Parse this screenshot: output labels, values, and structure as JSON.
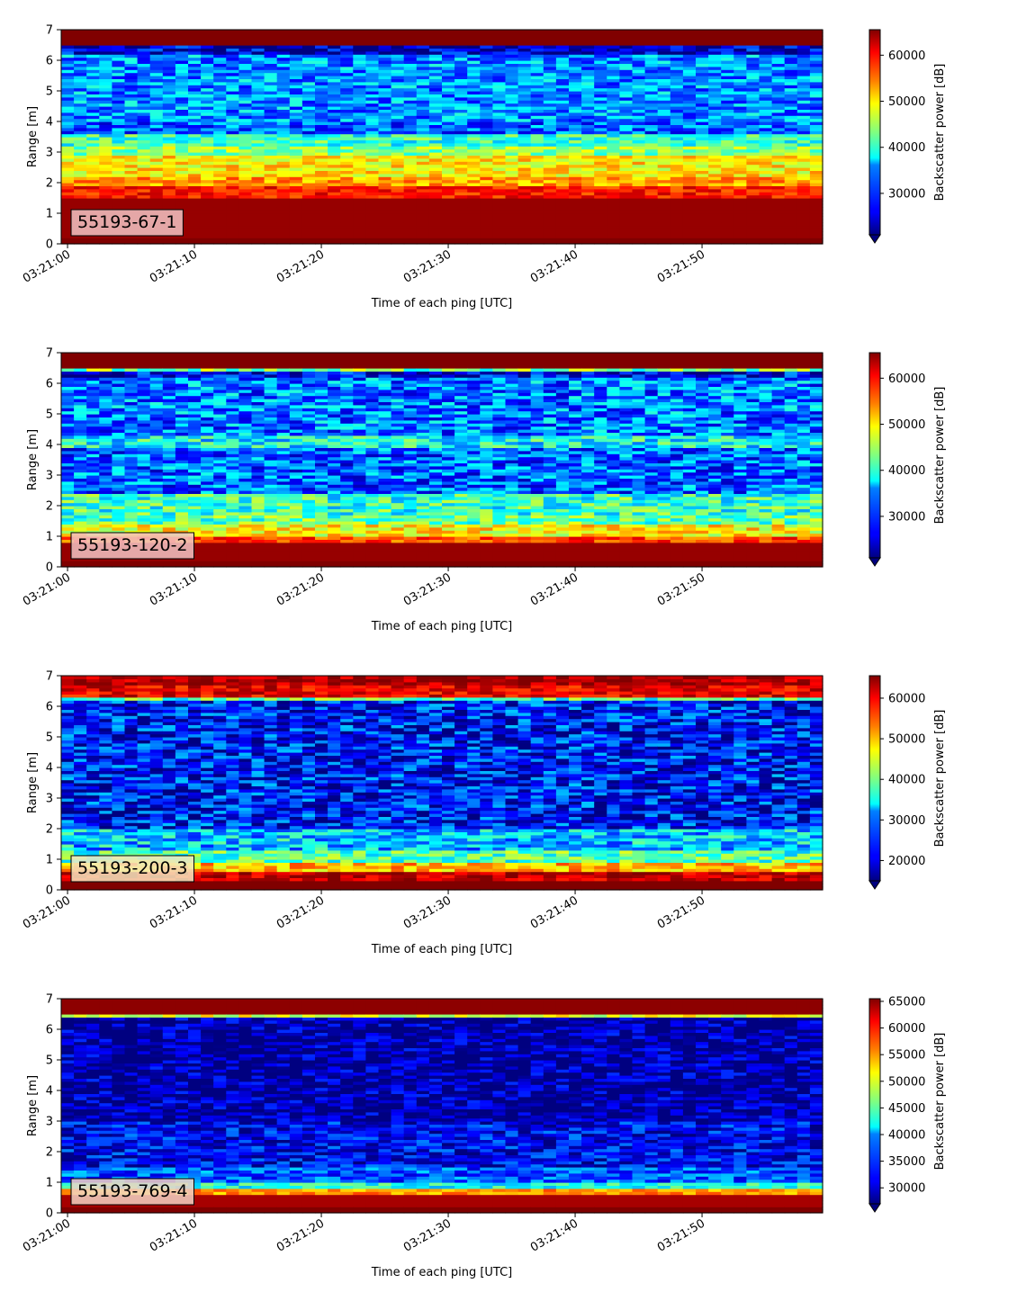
{
  "chart_data": [
    {
      "type": "heatmap",
      "tag": "55193-67-1",
      "xlabel": "Time of each ping [UTC]",
      "ylabel": "Range [m]",
      "xticks": [
        "03:21:00",
        "03:21:10",
        "03:21:20",
        "03:21:30",
        "03:21:40",
        "03:21:50"
      ],
      "x_seconds": [
        0,
        10,
        20,
        30,
        40,
        50
      ],
      "xlim_seconds": [
        -0.5,
        59.5
      ],
      "ylim": [
        0,
        7
      ],
      "yticks": [
        0,
        1,
        2,
        3,
        4,
        5,
        6,
        7
      ],
      "colorbar": {
        "label": "Backscatter power [dB]",
        "range": [
          21000,
          65535
        ],
        "ticks": [
          30000,
          40000,
          50000,
          60000
        ],
        "tick_labels": [
          "30000",
          "40000",
          "50000",
          "60000"
        ],
        "extend": "min",
        "colormap": "jet"
      },
      "range_profile": [
        {
          "range": [
            0.0,
            0.2
          ],
          "value": 65535
        },
        {
          "range": [
            0.2,
            1.5
          ],
          "value": 64500
        },
        {
          "range": [
            1.5,
            1.9
          ],
          "value": 59000
        },
        {
          "range": [
            1.9,
            2.2
          ],
          "value": 53000
        },
        {
          "range": [
            2.2,
            2.9
          ],
          "value": 49500
        },
        {
          "range": [
            2.9,
            3.2
          ],
          "value": 44000
        },
        {
          "range": [
            3.2,
            3.6
          ],
          "value": 40000
        },
        {
          "range": [
            3.6,
            4.0
          ],
          "value": 31000
        },
        {
          "range": [
            4.0,
            6.2
          ],
          "value": 33000
        },
        {
          "range": [
            6.2,
            6.5
          ],
          "value": 24000
        },
        {
          "range": [
            6.5,
            6.55
          ],
          "value": 45000
        },
        {
          "range": [
            6.55,
            7.0
          ],
          "value": 65535
        }
      ],
      "noise_amplitude": 0.35
    },
    {
      "type": "heatmap",
      "tag": "55193-120-2",
      "xlabel": "Time of each ping [UTC]",
      "ylabel": "Range [m]",
      "xticks": [
        "03:21:00",
        "03:21:10",
        "03:21:20",
        "03:21:30",
        "03:21:40",
        "03:21:50"
      ],
      "x_seconds": [
        0,
        10,
        20,
        30,
        40,
        50
      ],
      "xlim_seconds": [
        -0.5,
        59.5
      ],
      "ylim": [
        0,
        7
      ],
      "yticks": [
        0,
        1,
        2,
        3,
        4,
        5,
        6,
        7
      ],
      "colorbar": {
        "label": "Backscatter power [dB]",
        "range": [
          21000,
          65535
        ],
        "ticks": [
          30000,
          40000,
          50000,
          60000
        ],
        "tick_labels": [
          "30000",
          "40000",
          "50000",
          "60000"
        ],
        "extend": "min",
        "colormap": "jet"
      },
      "range_profile": [
        {
          "range": [
            0.0,
            0.2
          ],
          "value": 65535
        },
        {
          "range": [
            0.2,
            0.8
          ],
          "value": 64500
        },
        {
          "range": [
            0.8,
            1.0
          ],
          "value": 57000
        },
        {
          "range": [
            1.0,
            1.4
          ],
          "value": 49000
        },
        {
          "range": [
            1.4,
            1.7
          ],
          "value": 42000
        },
        {
          "range": [
            1.7,
            2.4
          ],
          "value": 40000
        },
        {
          "range": [
            2.4,
            3.9
          ],
          "value": 31000
        },
        {
          "range": [
            3.9,
            4.3
          ],
          "value": 38000
        },
        {
          "range": [
            4.3,
            6.2
          ],
          "value": 32000
        },
        {
          "range": [
            6.2,
            6.4
          ],
          "value": 25000
        },
        {
          "range": [
            6.4,
            6.5
          ],
          "value": 43000
        },
        {
          "range": [
            6.5,
            7.0
          ],
          "value": 65535
        }
      ],
      "noise_amplitude": 0.4
    },
    {
      "type": "heatmap",
      "tag": "55193-200-3",
      "xlabel": "Time of each ping [UTC]",
      "ylabel": "Range [m]",
      "xticks": [
        "03:21:00",
        "03:21:10",
        "03:21:20",
        "03:21:30",
        "03:21:40",
        "03:21:50"
      ],
      "x_seconds": [
        0,
        10,
        20,
        30,
        40,
        50
      ],
      "xlim_seconds": [
        -0.5,
        59.5
      ],
      "ylim": [
        0,
        7
      ],
      "yticks": [
        0,
        1,
        2,
        3,
        4,
        5,
        6,
        7
      ],
      "colorbar": {
        "label": "Backscatter power [dB]",
        "range": [
          15000,
          65535
        ],
        "ticks": [
          20000,
          30000,
          40000,
          50000,
          60000
        ],
        "tick_labels": [
          "20000",
          "30000",
          "40000",
          "50000",
          "60000"
        ],
        "extend": "min",
        "colormap": "jet"
      },
      "range_profile": [
        {
          "range": [
            0.0,
            0.3
          ],
          "value": 65535
        },
        {
          "range": [
            0.3,
            0.6
          ],
          "value": 62000
        },
        {
          "range": [
            0.6,
            0.9
          ],
          "value": 50000
        },
        {
          "range": [
            0.9,
            1.3
          ],
          "value": 38000
        },
        {
          "range": [
            1.3,
            2.0
          ],
          "value": 31000
        },
        {
          "range": [
            2.0,
            6.2
          ],
          "value": 22000
        },
        {
          "range": [
            6.2,
            6.35
          ],
          "value": 38000
        },
        {
          "range": [
            6.35,
            6.7
          ],
          "value": 60000
        },
        {
          "range": [
            6.7,
            7.0
          ],
          "value": 63000
        }
      ],
      "noise_amplitude": 0.4
    },
    {
      "type": "heatmap",
      "tag": "55193-769-4",
      "xlabel": "Time of each ping [UTC]",
      "ylabel": "Range [m]",
      "xticks": [
        "03:21:00",
        "03:21:10",
        "03:21:20",
        "03:21:30",
        "03:21:40",
        "03:21:50"
      ],
      "x_seconds": [
        0,
        10,
        20,
        30,
        40,
        50
      ],
      "xlim_seconds": [
        -0.5,
        59.5
      ],
      "ylim": [
        0,
        7
      ],
      "yticks": [
        0,
        1,
        2,
        3,
        4,
        5,
        6,
        7
      ],
      "colorbar": {
        "label": "Backscatter power [dB]",
        "range": [
          27000,
          65500
        ],
        "ticks": [
          30000,
          35000,
          40000,
          45000,
          50000,
          55000,
          60000,
          65000
        ],
        "tick_labels": [
          "30000",
          "35000",
          "40000",
          "45000",
          "50000",
          "55000",
          "60000",
          "65000"
        ],
        "extend": "min",
        "colormap": "jet"
      },
      "range_profile": [
        {
          "range": [
            0.0,
            0.25
          ],
          "value": 65500
        },
        {
          "range": [
            0.25,
            0.6
          ],
          "value": 64000
        },
        {
          "range": [
            0.6,
            0.8
          ],
          "value": 55000
        },
        {
          "range": [
            0.8,
            1.0
          ],
          "value": 42000
        },
        {
          "range": [
            1.0,
            1.5
          ],
          "value": 35000
        },
        {
          "range": [
            1.5,
            3.0
          ],
          "value": 31500
        },
        {
          "range": [
            3.0,
            6.45
          ],
          "value": 28000
        },
        {
          "range": [
            6.45,
            6.55
          ],
          "value": 50000
        },
        {
          "range": [
            6.55,
            7.0
          ],
          "value": 65000
        }
      ],
      "noise_amplitude": 0.3
    }
  ]
}
